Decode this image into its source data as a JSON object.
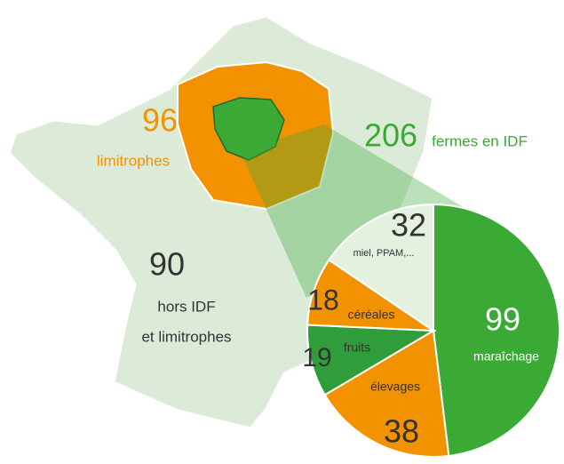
{
  "chart_data": {
    "type": "pie",
    "categories": [
      "maraîchage",
      "élevages",
      "fruits",
      "céréales",
      "miel, PPAM,..."
    ],
    "values": [
      99,
      38,
      19,
      18,
      32
    ],
    "colors": [
      "#3aaa35",
      "#f39200",
      "#2f9e3a",
      "#f39200",
      "#e4f1df"
    ]
  },
  "map_labels": [
    {
      "value": 96,
      "lines": [
        "limitrophes"
      ],
      "color": "#f39200"
    },
    {
      "value": 206,
      "lines": [
        "fermes en IDF"
      ],
      "color": "#3aaa35"
    },
    {
      "value": 90,
      "lines": [
        "hors IDF",
        "et limitrophes"
      ],
      "color": "#333333"
    }
  ]
}
